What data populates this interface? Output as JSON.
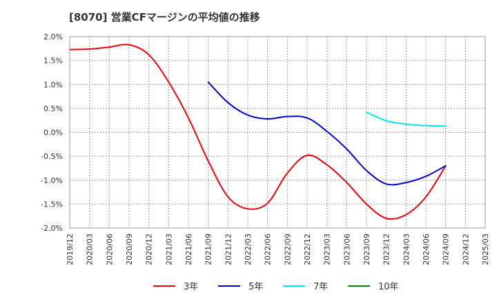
{
  "chart_data": {
    "type": "line",
    "title": "[8070]  営業CFマージンの平均値の推移",
    "xlabel": "",
    "ylabel": "",
    "y_ticks": [
      "2.0%",
      "1.5%",
      "1.0%",
      "0.5%",
      "0.0%",
      "-0.5%",
      "-1.0%",
      "-1.5%",
      "-2.0%"
    ],
    "ylim": [
      -2.0,
      2.0
    ],
    "x_ticks": [
      "2019/12",
      "2020/03",
      "2020/06",
      "2020/09",
      "2020/12",
      "2021/03",
      "2021/06",
      "2021/09",
      "2021/12",
      "2022/03",
      "2022/06",
      "2022/09",
      "2022/12",
      "2023/03",
      "2023/06",
      "2023/09",
      "2023/12",
      "2024/03",
      "2024/06",
      "2024/09",
      "2024/12",
      "2025/03"
    ],
    "grid": true,
    "legend_position": "bottom",
    "series": [
      {
        "name": "3年",
        "color": "#e8000b",
        "points": [
          [
            "2019/12",
            1.73
          ],
          [
            "2020/03",
            1.74
          ],
          [
            "2020/06",
            1.78
          ],
          [
            "2020/09",
            1.83
          ],
          [
            "2020/12",
            1.62
          ],
          [
            "2021/03",
            1.05
          ],
          [
            "2021/06",
            0.3
          ],
          [
            "2021/09",
            -0.6
          ],
          [
            "2021/12",
            -1.35
          ],
          [
            "2022/03",
            -1.6
          ],
          [
            "2022/06",
            -1.48
          ],
          [
            "2022/09",
            -0.85
          ],
          [
            "2022/12",
            -0.48
          ],
          [
            "2023/03",
            -0.68
          ],
          [
            "2023/06",
            -1.05
          ],
          [
            "2023/09",
            -1.5
          ],
          [
            "2023/12",
            -1.8
          ],
          [
            "2024/03",
            -1.72
          ],
          [
            "2024/06",
            -1.35
          ],
          [
            "2024/09",
            -0.7
          ]
        ]
      },
      {
        "name": "5年",
        "color": "#0000cc",
        "points": [
          [
            "2021/09",
            1.05
          ],
          [
            "2021/12",
            0.62
          ],
          [
            "2022/03",
            0.36
          ],
          [
            "2022/06",
            0.28
          ],
          [
            "2022/09",
            0.33
          ],
          [
            "2022/12",
            0.3
          ],
          [
            "2023/03",
            0.02
          ],
          [
            "2023/06",
            -0.35
          ],
          [
            "2023/09",
            -0.8
          ],
          [
            "2023/12",
            -1.08
          ],
          [
            "2024/03",
            -1.05
          ],
          [
            "2024/06",
            -0.92
          ],
          [
            "2024/09",
            -0.7
          ]
        ]
      },
      {
        "name": "7年",
        "color": "#00e5ee",
        "points": [
          [
            "2023/09",
            0.42
          ],
          [
            "2023/12",
            0.24
          ],
          [
            "2024/03",
            0.17
          ],
          [
            "2024/06",
            0.14
          ],
          [
            "2024/09",
            0.13
          ]
        ]
      },
      {
        "name": "10年",
        "color": "#008800",
        "points": []
      }
    ]
  }
}
